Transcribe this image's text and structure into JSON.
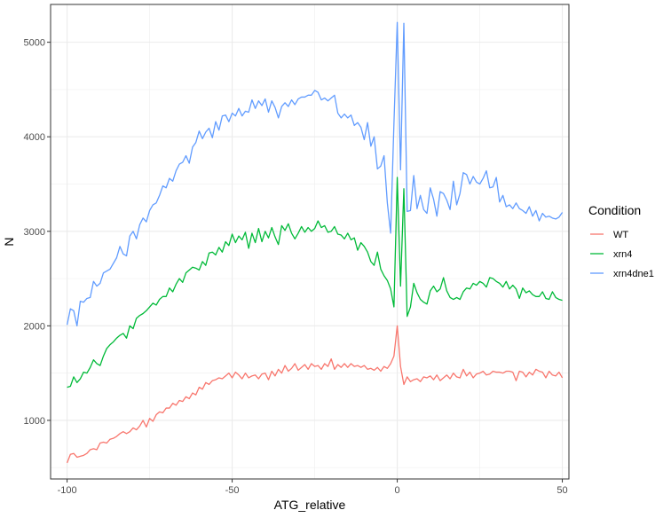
{
  "chart_data": {
    "type": "line",
    "xlabel": "ATG_relative",
    "ylabel": "N",
    "xlim": [
      -105,
      52
    ],
    "ylim": [
      380,
      5400
    ],
    "xticks": [
      -100,
      -50,
      0,
      50
    ],
    "xtick_labels": [
      "-100",
      "-50",
      "0",
      "50"
    ],
    "yticks": [
      1000,
      2000,
      3000,
      4000,
      5000
    ],
    "ytick_labels": [
      "1000",
      "2000",
      "3000",
      "4000",
      "5000"
    ],
    "grid": true,
    "legend": {
      "title": "Condition",
      "position": "right"
    },
    "series": [
      {
        "name": "WT",
        "color": "#F8766D",
        "x": [
          -100,
          -99,
          -98,
          -97,
          -96,
          -95,
          -94,
          -93,
          -92,
          -91,
          -90,
          -89,
          -88,
          -87,
          -86,
          -85,
          -84,
          -83,
          -82,
          -81,
          -80,
          -79,
          -78,
          -77,
          -76,
          -75,
          -74,
          -73,
          -72,
          -71,
          -70,
          -69,
          -68,
          -67,
          -66,
          -65,
          -64,
          -63,
          -62,
          -61,
          -60,
          -59,
          -58,
          -57,
          -56,
          -55,
          -54,
          -53,
          -52,
          -51,
          -50,
          -49,
          -48,
          -47,
          -46,
          -45,
          -44,
          -43,
          -42,
          -41,
          -40,
          -39,
          -38,
          -37,
          -36,
          -35,
          -34,
          -33,
          -32,
          -31,
          -30,
          -29,
          -28,
          -27,
          -26,
          -25,
          -24,
          -23,
          -22,
          -21,
          -20,
          -19,
          -18,
          -17,
          -16,
          -15,
          -14,
          -13,
          -12,
          -11,
          -10,
          -9,
          -8,
          -7,
          -6,
          -5,
          -4,
          -3,
          -2,
          -1,
          0,
          1,
          2,
          3,
          4,
          5,
          6,
          7,
          8,
          9,
          10,
          11,
          12,
          13,
          14,
          15,
          16,
          17,
          18,
          19,
          20,
          21,
          22,
          23,
          24,
          25,
          26,
          27,
          28,
          29,
          30,
          31,
          32,
          33,
          34,
          35,
          36,
          37,
          38,
          39,
          40,
          41,
          42,
          43,
          44,
          45,
          46,
          47,
          48,
          49,
          50
        ],
        "y": [
          550,
          640,
          650,
          610,
          620,
          630,
          650,
          690,
          700,
          690,
          760,
          770,
          760,
          800,
          810,
          830,
          860,
          880,
          860,
          880,
          920,
          900,
          940,
          1000,
          930,
          1020,
          990,
          1060,
          1090,
          1080,
          1130,
          1130,
          1180,
          1160,
          1210,
          1200,
          1250,
          1230,
          1290,
          1270,
          1350,
          1330,
          1400,
          1380,
          1420,
          1430,
          1450,
          1440,
          1470,
          1500,
          1450,
          1510,
          1480,
          1440,
          1500,
          1450,
          1470,
          1480,
          1440,
          1490,
          1500,
          1430,
          1520,
          1470,
          1540,
          1500,
          1580,
          1520,
          1550,
          1600,
          1530,
          1560,
          1590,
          1540,
          1600,
          1570,
          1580,
          1540,
          1600,
          1570,
          1650,
          1540,
          1590,
          1560,
          1600,
          1560,
          1600,
          1570,
          1580,
          1560,
          1580,
          1540,
          1550,
          1530,
          1560,
          1520,
          1570,
          1550,
          1600,
          1680,
          2000,
          1570,
          1380,
          1460,
          1410,
          1430,
          1440,
          1410,
          1460,
          1450,
          1470,
          1430,
          1480,
          1420,
          1450,
          1480,
          1440,
          1500,
          1460,
          1450,
          1540,
          1470,
          1510,
          1450,
          1490,
          1500,
          1520,
          1480,
          1490,
          1520,
          1510,
          1510,
          1500,
          1520,
          1520,
          1510,
          1420,
          1520,
          1510,
          1460,
          1510,
          1480,
          1540,
          1520,
          1510,
          1450,
          1520,
          1480,
          1470,
          1510,
          1450
        ]
      },
      {
        "name": "xrn4",
        "color": "#00BA38",
        "x": [
          -100,
          -99,
          -98,
          -97,
          -96,
          -95,
          -94,
          -93,
          -92,
          -91,
          -90,
          -89,
          -88,
          -87,
          -86,
          -85,
          -84,
          -83,
          -82,
          -81,
          -80,
          -79,
          -78,
          -77,
          -76,
          -75,
          -74,
          -73,
          -72,
          -71,
          -70,
          -69,
          -68,
          -67,
          -66,
          -65,
          -64,
          -63,
          -62,
          -61,
          -60,
          -59,
          -58,
          -57,
          -56,
          -55,
          -54,
          -53,
          -52,
          -51,
          -50,
          -49,
          -48,
          -47,
          -46,
          -45,
          -44,
          -43,
          -42,
          -41,
          -40,
          -39,
          -38,
          -37,
          -36,
          -35,
          -34,
          -33,
          -32,
          -31,
          -30,
          -29,
          -28,
          -27,
          -26,
          -25,
          -24,
          -23,
          -22,
          -21,
          -20,
          -19,
          -18,
          -17,
          -16,
          -15,
          -14,
          -13,
          -12,
          -11,
          -10,
          -9,
          -8,
          -7,
          -6,
          -5,
          -4,
          -3,
          -2,
          -1,
          0,
          1,
          2,
          3,
          4,
          5,
          6,
          7,
          8,
          9,
          10,
          11,
          12,
          13,
          14,
          15,
          16,
          17,
          18,
          19,
          20,
          21,
          22,
          23,
          24,
          25,
          26,
          27,
          28,
          29,
          30,
          31,
          32,
          33,
          34,
          35,
          36,
          37,
          38,
          39,
          40,
          41,
          42,
          43,
          44,
          45,
          46,
          47,
          48,
          49,
          50
        ],
        "y": [
          1350,
          1360,
          1460,
          1400,
          1440,
          1510,
          1500,
          1560,
          1640,
          1600,
          1580,
          1680,
          1760,
          1800,
          1830,
          1870,
          1900,
          1920,
          1870,
          2000,
          1970,
          2080,
          2110,
          2130,
          2160,
          2200,
          2240,
          2220,
          2280,
          2310,
          2310,
          2400,
          2360,
          2440,
          2500,
          2460,
          2560,
          2590,
          2620,
          2610,
          2590,
          2680,
          2640,
          2770,
          2780,
          2750,
          2830,
          2780,
          2890,
          2850,
          2970,
          2880,
          2950,
          2910,
          2990,
          2820,
          2980,
          2880,
          3030,
          2890,
          3000,
          2930,
          3040,
          2940,
          2860,
          3060,
          3010,
          3080,
          2980,
          2920,
          2980,
          3050,
          2990,
          3040,
          3000,
          3030,
          3110,
          3040,
          3060,
          2990,
          3000,
          3050,
          2970,
          2960,
          2920,
          2980,
          2910,
          2930,
          2800,
          2880,
          2840,
          2780,
          2680,
          2640,
          2780,
          2600,
          2530,
          2480,
          2390,
          2200,
          3570,
          2420,
          3450,
          2100,
          2200,
          2450,
          2350,
          2280,
          2250,
          2230,
          2370,
          2420,
          2360,
          2390,
          2510,
          2370,
          2300,
          2280,
          2300,
          2280,
          2360,
          2400,
          2390,
          2450,
          2430,
          2470,
          2450,
          2410,
          2510,
          2500,
          2470,
          2450,
          2410,
          2470,
          2390,
          2430,
          2390,
          2290,
          2400,
          2350,
          2370,
          2330,
          2310,
          2310,
          2360,
          2290,
          2280,
          2360,
          2300,
          2280,
          2270
        ]
      },
      {
        "name": "xrn4dne1",
        "color": "#619CFF",
        "x": [
          -100,
          -99,
          -98,
          -97,
          -96,
          -95,
          -94,
          -93,
          -92,
          -91,
          -90,
          -89,
          -88,
          -87,
          -86,
          -85,
          -84,
          -83,
          -82,
          -81,
          -80,
          -79,
          -78,
          -77,
          -76,
          -75,
          -74,
          -73,
          -72,
          -71,
          -70,
          -69,
          -68,
          -67,
          -66,
          -65,
          -64,
          -63,
          -62,
          -61,
          -60,
          -59,
          -58,
          -57,
          -56,
          -55,
          -54,
          -53,
          -52,
          -51,
          -50,
          -49,
          -48,
          -47,
          -46,
          -45,
          -44,
          -43,
          -42,
          -41,
          -40,
          -39,
          -38,
          -37,
          -36,
          -35,
          -34,
          -33,
          -32,
          -31,
          -30,
          -29,
          -28,
          -27,
          -26,
          -25,
          -24,
          -23,
          -22,
          -21,
          -20,
          -19,
          -18,
          -17,
          -16,
          -15,
          -14,
          -13,
          -12,
          -11,
          -10,
          -9,
          -8,
          -7,
          -6,
          -5,
          -4,
          -3,
          -2,
          -1,
          0,
          1,
          2,
          3,
          4,
          5,
          6,
          7,
          8,
          9,
          10,
          11,
          12,
          13,
          14,
          15,
          16,
          17,
          18,
          19,
          20,
          21,
          22,
          23,
          24,
          25,
          26,
          27,
          28,
          29,
          30,
          31,
          32,
          33,
          34,
          35,
          36,
          37,
          38,
          39,
          40,
          41,
          42,
          43,
          44,
          45,
          46,
          47,
          48,
          49,
          50
        ],
        "y": [
          2010,
          2180,
          2160,
          2000,
          2260,
          2250,
          2290,
          2300,
          2470,
          2420,
          2450,
          2560,
          2580,
          2600,
          2660,
          2720,
          2840,
          2760,
          2740,
          2950,
          3000,
          2920,
          3070,
          3140,
          3100,
          3220,
          3280,
          3300,
          3380,
          3480,
          3460,
          3560,
          3530,
          3640,
          3710,
          3730,
          3800,
          3720,
          3890,
          3940,
          4060,
          3980,
          4050,
          4090,
          3990,
          4160,
          4070,
          4220,
          4230,
          4160,
          4250,
          4220,
          4300,
          4220,
          4270,
          4260,
          4390,
          4300,
          4380,
          4330,
          4400,
          4260,
          4380,
          4310,
          4200,
          4320,
          4360,
          4320,
          4390,
          4340,
          4400,
          4420,
          4420,
          4440,
          4440,
          4490,
          4470,
          4390,
          4410,
          4380,
          4410,
          4440,
          4250,
          4200,
          4240,
          4200,
          4230,
          4120,
          4150,
          4100,
          3970,
          4150,
          3900,
          4000,
          3660,
          3690,
          3800,
          3300,
          2980,
          4140,
          5210,
          3650,
          5200,
          3210,
          3220,
          3590,
          3240,
          3380,
          3230,
          3190,
          3460,
          3340,
          3160,
          3420,
          3400,
          3330,
          3230,
          3530,
          3280,
          3400,
          3620,
          3600,
          3500,
          3580,
          3520,
          3500,
          3560,
          3640,
          3460,
          3470,
          3570,
          3310,
          3380,
          3260,
          3280,
          3240,
          3300,
          3240,
          3220,
          3190,
          3260,
          3160,
          3220,
          3110,
          3190,
          3150,
          3160,
          3140,
          3130,
          3150,
          3200
        ]
      }
    ]
  }
}
